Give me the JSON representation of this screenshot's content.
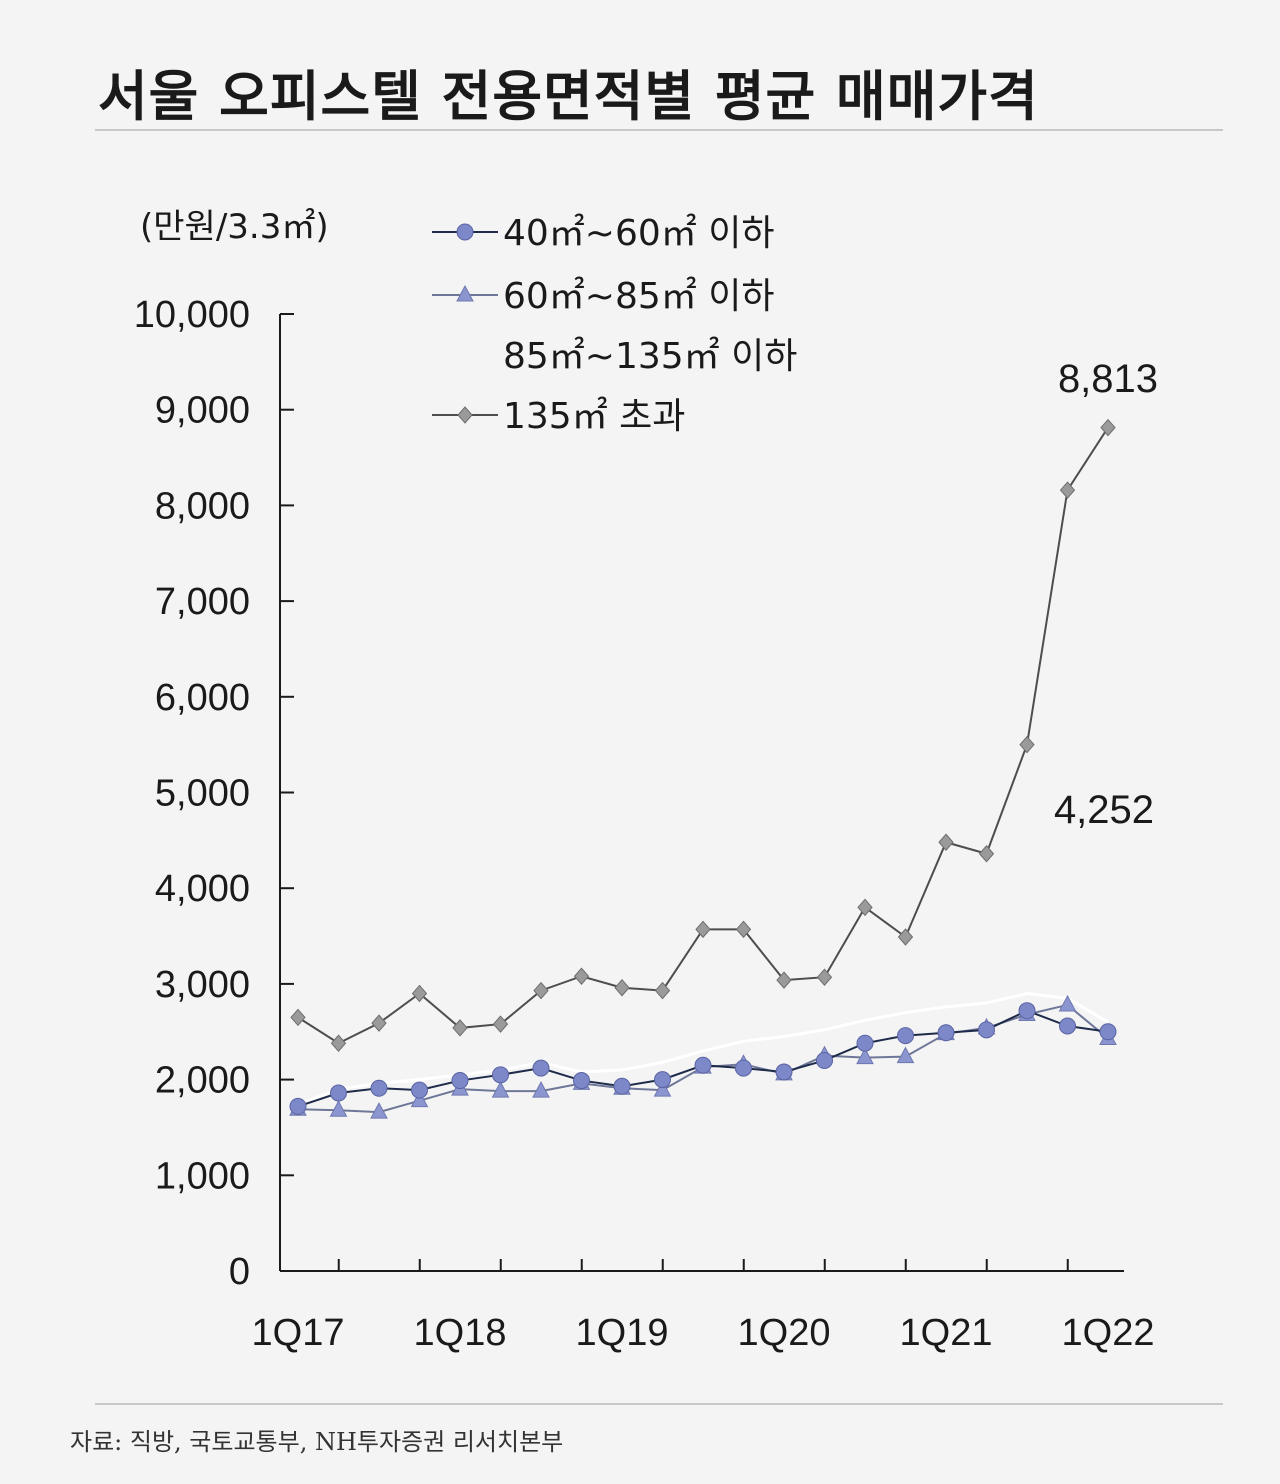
{
  "page": {
    "title": "서울 오피스텔 전용면적별 평균 매매가격",
    "source": "자료: 직방, 국토교통부, NH투자증권 리서치본부"
  },
  "chart_data": {
    "type": "line",
    "unit_label": "(만원/3.3㎡)",
    "ylim": [
      0,
      10000
    ],
    "yticks": [
      "0",
      "1,000",
      "2,000",
      "3,000",
      "4,000",
      "5,000",
      "6,000",
      "7,000",
      "8,000",
      "9,000",
      "10,000"
    ],
    "ytick_values": [
      0,
      1000,
      2000,
      3000,
      4000,
      5000,
      6000,
      7000,
      8000,
      9000,
      10000
    ],
    "x": [
      "1Q17",
      "2Q17",
      "3Q17",
      "4Q17",
      "1Q18",
      "2Q18",
      "3Q18",
      "4Q18",
      "1Q19",
      "2Q19",
      "3Q19",
      "4Q19",
      "1Q20",
      "2Q20",
      "3Q20",
      "4Q20",
      "1Q21",
      "2Q21",
      "3Q21",
      "4Q21",
      "1Q22"
    ],
    "xtick_labels": [
      "1Q17",
      "1Q18",
      "1Q19",
      "1Q20",
      "1Q21",
      "1Q22"
    ],
    "xtick_index": [
      0,
      4,
      8,
      12,
      16,
      20
    ],
    "legend_position": "top-left",
    "grid": false,
    "series": [
      {
        "name": "40㎡~60㎡ 이하",
        "marker": "circle",
        "color": "#1e2b4a",
        "marker_color": "#7d88c9",
        "values": [
          1720,
          1860,
          1910,
          1890,
          1990,
          2050,
          2120,
          1990,
          1930,
          2000,
          2150,
          2120,
          2080,
          2200,
          2380,
          2460,
          2490,
          2520,
          2720,
          2560,
          2500
        ]
      },
      {
        "name": "60㎡~85㎡ 이하",
        "marker": "triangle",
        "color": "#6f7799",
        "marker_color": "#8b95cf",
        "values": [
          1690,
          1680,
          1660,
          1780,
          1900,
          1880,
          1880,
          1960,
          1910,
          1890,
          2130,
          2160,
          2060,
          2250,
          2230,
          2240,
          2480,
          2540,
          2680,
          2780,
          2430
        ]
      },
      {
        "name": "85㎡~135㎡ 이하",
        "marker": "none",
        "color": "#ffffff",
        "marker_color": "#ffffff",
        "values": [
          1740,
          1900,
          1960,
          2000,
          2050,
          2100,
          2180,
          2080,
          2100,
          2180,
          2300,
          2400,
          2450,
          2520,
          2620,
          2700,
          2760,
          2800,
          2900,
          2850,
          2600
        ]
      },
      {
        "name": "135㎡ 초과",
        "marker": "diamond",
        "color": "#4d4d4d",
        "marker_color": "#9a9a9a",
        "values": [
          2650,
          2380,
          2590,
          2900,
          2540,
          2580,
          2930,
          3080,
          2960,
          2930,
          3570,
          3570,
          3040,
          3070,
          3800,
          3490,
          4480,
          4360,
          5500,
          8160,
          8813
        ]
      }
    ],
    "annotations": [
      {
        "text": "8,813"
      },
      {
        "text": "4,252"
      }
    ],
    "colors": {
      "axis": "#1a1a1a"
    }
  }
}
